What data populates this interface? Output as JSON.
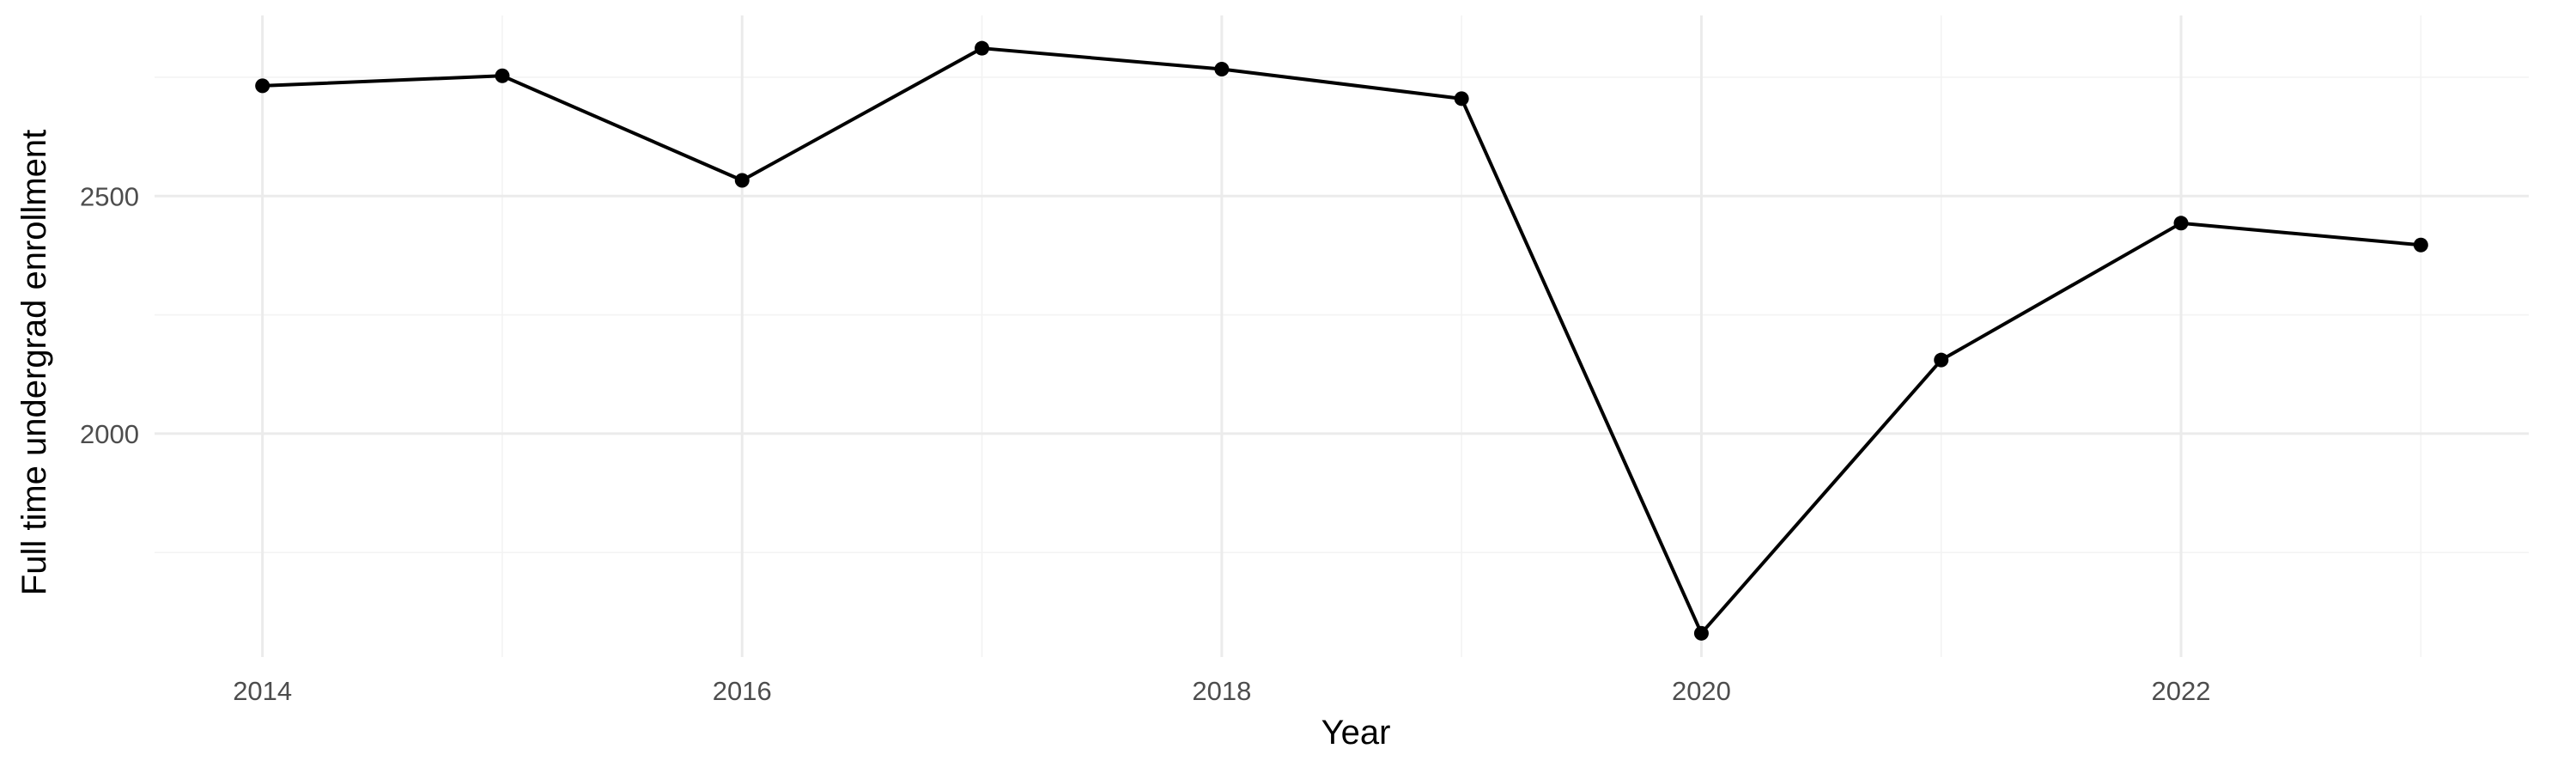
{
  "chart_data": {
    "type": "line",
    "title": "",
    "xlabel": "Year",
    "ylabel": "Full time undergrad enrollment",
    "x": [
      2014,
      2015,
      2016,
      2017,
      2018,
      2019,
      2020,
      2021,
      2022,
      2023
    ],
    "series": [
      {
        "values": [
          2732,
          2753,
          2533,
          2811,
          2767,
          2705,
          1580,
          2155,
          2443,
          2397
        ],
        "color": "#000000",
        "markers": true
      }
    ],
    "xlim": [
      2013.55,
      2023.45
    ],
    "ylim": [
      1530,
      2880
    ],
    "x_ticks": [
      2014,
      2016,
      2018,
      2020,
      2022
    ],
    "x_tick_labels": [
      "2014",
      "2016",
      "2018",
      "2020",
      "2022"
    ],
    "y_ticks": [
      2000,
      2500
    ],
    "y_tick_labels": [
      "2000",
      "2500"
    ],
    "x_minor_ticks": [
      2015,
      2017,
      2019,
      2021,
      2023
    ],
    "y_minor_ticks": [
      1750,
      2250,
      2750
    ],
    "grid": true,
    "legend": "none",
    "background": "#ffffff"
  }
}
